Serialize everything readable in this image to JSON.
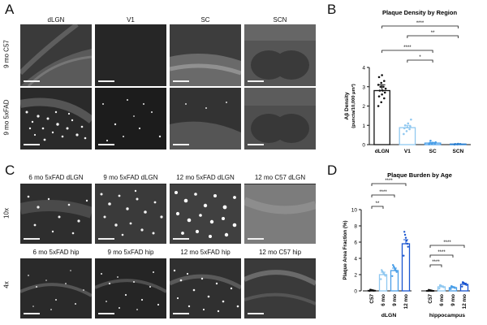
{
  "panels": {
    "A": {
      "letter": "A",
      "columns": [
        "dLGN",
        "V1",
        "SC",
        "SCN"
      ],
      "rows": [
        "9 mo C57",
        "9 mo 5xFAD"
      ]
    },
    "B": {
      "letter": "B"
    },
    "C": {
      "letter": "C",
      "top_labels": [
        "6 mo 5xFAD dLGN",
        "9 mo 5xFAD dLGN",
        "12 mo 5xFAD dLGN",
        "12 mo C57 dLGN"
      ],
      "bottom_labels": [
        "6 mo 5xFAD hip",
        "9 mo 5xFAD hip",
        "12 mo 5xFAD hip",
        "12 mo C57 hip"
      ],
      "rows": [
        "10x",
        "4x"
      ]
    },
    "D": {
      "letter": "D"
    }
  },
  "chart_data": [
    {
      "type": "bar",
      "title": "Plaque Density by Region",
      "ylabel": "Aβ Density\n(puncta/10,000 μm²)",
      "categories": [
        "dLGN",
        "V1",
        "SC",
        "SCN"
      ],
      "values": [
        2.8,
        0.88,
        0.08,
        0.03
      ],
      "errors": [
        0.3,
        0.12,
        0.03,
        0.01
      ],
      "ylim": [
        0,
        4
      ],
      "yticks": [
        0,
        1,
        2,
        3,
        4
      ],
      "colors": [
        "#111111",
        "#90c8f0",
        "#4a9fe8",
        "#2a7fd0"
      ],
      "points": [
        [
          2.0,
          2.2,
          2.4,
          2.5,
          2.6,
          2.7,
          2.8,
          2.8,
          2.9,
          3.0,
          3.0,
          3.1,
          3.2,
          3.3,
          3.5,
          3.6
        ],
        [
          0.55,
          0.7,
          0.8,
          0.85,
          0.9,
          0.95,
          1.0,
          1.1,
          1.3
        ],
        [
          0.02,
          0.05,
          0.07,
          0.08,
          0.1,
          0.12,
          0.2
        ],
        [
          0.01,
          0.02,
          0.03,
          0.03,
          0.04
        ]
      ],
      "significance": [
        {
          "from": 0,
          "to": 3,
          "label": "****"
        },
        {
          "from": 1,
          "to": 3,
          "label": "**"
        },
        {
          "from": 0,
          "to": 2,
          "label": "****"
        },
        {
          "from": 1,
          "to": 2,
          "label": "*"
        }
      ]
    },
    {
      "type": "bar",
      "title": "Plaque Burden by Age",
      "ylabel": "Plaque Area Fraction (%)",
      "ylim": [
        0,
        10
      ],
      "yticks": [
        0,
        2,
        4,
        6,
        8,
        10
      ],
      "groups": [
        {
          "name": "dLGN",
          "categories": [
            "C57",
            "6 mo",
            "9 mo",
            "12 mo"
          ],
          "values": [
            0.05,
            2.0,
            2.5,
            5.8
          ],
          "errors": [
            0.02,
            0.3,
            0.3,
            0.5
          ]
        },
        {
          "name": "hippocampus",
          "categories": [
            "C57",
            "6 mo",
            "9 mo",
            "12 mo"
          ],
          "values": [
            0.03,
            0.5,
            0.4,
            0.8
          ],
          "errors": [
            0.01,
            0.1,
            0.1,
            0.15
          ]
        }
      ],
      "colors": [
        "#111111",
        "#90c8f0",
        "#4a9fe8",
        "#1a55d0"
      ],
      "significance": [
        {
          "group": 0,
          "from": 0,
          "to": 3,
          "label": "****"
        },
        {
          "group": 0,
          "from": 0,
          "to": 2,
          "label": "****"
        },
        {
          "group": 0,
          "from": 0,
          "to": 1,
          "label": "**"
        },
        {
          "group": 1,
          "from": 0,
          "to": 3,
          "label": "****"
        },
        {
          "group": 1,
          "from": 0,
          "to": 2,
          "label": "****"
        },
        {
          "group": 1,
          "from": 0,
          "to": 1,
          "label": "****"
        }
      ]
    }
  ]
}
